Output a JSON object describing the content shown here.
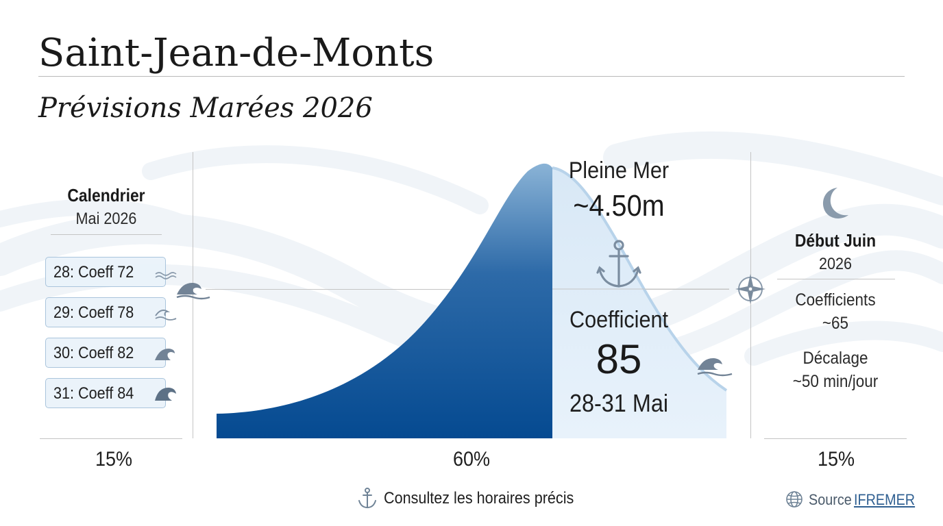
{
  "header": {
    "title": "Saint-Jean-de-Monts",
    "subtitle": "Prévisions Marées 2026"
  },
  "calendar": {
    "title": "Calendrier",
    "month": "Mai 2026",
    "items": [
      {
        "label": "28: Coeff 72",
        "icon": "wave-small-icon"
      },
      {
        "label": "29: Coeff 78",
        "icon": "wave-medium-icon"
      },
      {
        "label": "30: Coeff 82",
        "icon": "wave-large-icon"
      },
      {
        "label": "31: Coeff 84",
        "icon": "wave-filled-icon"
      }
    ]
  },
  "highlight": {
    "pleine_mer_label": "Pleine Mer",
    "pleine_mer_value": "~4.50m",
    "coefficient_label": "Coefficient",
    "coefficient_value": "85",
    "dates": "28-31 Mai"
  },
  "next_period": {
    "title": "Début Juin",
    "year": "2026",
    "coefficients_label": "Coefficients",
    "coefficients_value": "~65",
    "decalage_label": "Décalage",
    "decalage_value": "~50 min/jour"
  },
  "proportions": {
    "left": "15%",
    "center": "60%",
    "right": "15%"
  },
  "footer": {
    "note": "Consultez les horaires précis",
    "source_label": "Source",
    "source_link": "IFREMER"
  },
  "colors": {
    "deep_blue": "#0a4d91",
    "light_blue": "#e4f0fa",
    "wave_gray": "#6f8396",
    "rule_gray": "#c4c4c4"
  },
  "icons": [
    "anchor-icon",
    "moon-icon",
    "compass-icon",
    "wave-icon",
    "globe-icon"
  ]
}
